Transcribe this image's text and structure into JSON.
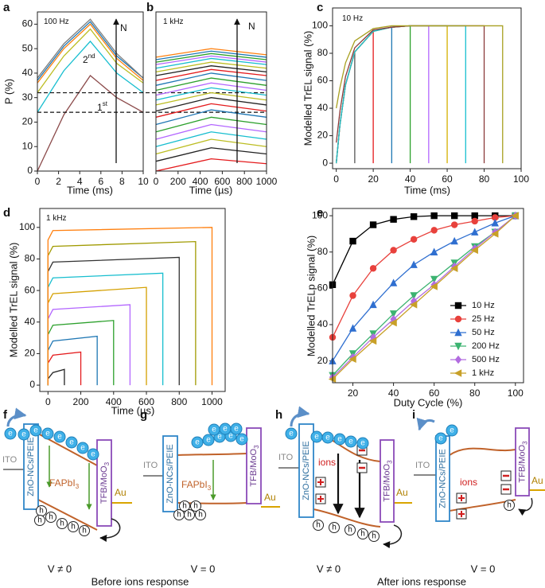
{
  "chart_data": [
    {
      "type": "line",
      "panel": "a",
      "xlabel": "Time (ms)",
      "ylabel": "P (%)",
      "annotations": [
        {
          "text": "100 Hz"
        },
        {
          "text": "N"
        },
        {
          "text": "2",
          "sup": "nd"
        },
        {
          "text": "1",
          "sup": "st"
        }
      ],
      "x": [
        0,
        2.5,
        5,
        7.5,
        10
      ],
      "series": [
        {
          "color": "#8b4a4a",
          "values": [
            0,
            23,
            39,
            30,
            24
          ]
        },
        {
          "color": "#17becf",
          "values": [
            24,
            41,
            53,
            40,
            32
          ]
        },
        {
          "color": "#bcbd22",
          "values": [
            32,
            47,
            58,
            44,
            36
          ]
        },
        {
          "color": "#ff7f0e",
          "values": [
            36,
            50,
            60,
            46,
            37
          ]
        },
        {
          "color": "#1f77b4",
          "values": [
            37,
            51,
            61,
            47,
            38
          ]
        },
        {
          "color": "#7f7f7f",
          "values": [
            38,
            52,
            62,
            48,
            38
          ]
        }
      ],
      "hlines": [
        24,
        32
      ],
      "xlim": [
        0,
        10
      ],
      "ylim": [
        0,
        65
      ],
      "xticks": [
        0,
        2,
        4,
        6,
        8,
        10
      ],
      "yticks": [
        0,
        10,
        20,
        30,
        40,
        50,
        60
      ]
    },
    {
      "type": "line",
      "panel": "b",
      "xlabel": "Time (µs)",
      "annotations": [
        {
          "text": "1 kHz"
        },
        {
          "text": "N"
        }
      ],
      "x": [
        0,
        500,
        1000
      ],
      "series": [
        {
          "color": "#e41a1c",
          "values": [
            0,
            5,
            3
          ]
        },
        {
          "color": "#222222",
          "values": [
            4,
            9.5,
            7
          ]
        },
        {
          "color": "#bcbd22",
          "values": [
            7,
            13,
            10
          ]
        },
        {
          "color": "#17becf",
          "values": [
            10,
            16,
            13
          ]
        },
        {
          "color": "#b366ff",
          "values": [
            13,
            19,
            16
          ]
        },
        {
          "color": "#2ca02c",
          "values": [
            16,
            22,
            19
          ]
        },
        {
          "color": "#1f77b4",
          "values": [
            19,
            25,
            22
          ]
        },
        {
          "color": "#e41a1c",
          "values": [
            22,
            27.5,
            24.5
          ]
        },
        {
          "color": "#222222",
          "values": [
            24.5,
            30,
            27
          ]
        },
        {
          "color": "#bcbd22",
          "values": [
            27,
            32,
            29
          ]
        },
        {
          "color": "#17becf",
          "values": [
            29,
            34,
            31
          ]
        },
        {
          "color": "#b366ff",
          "values": [
            31,
            36,
            33
          ]
        },
        {
          "color": "#2ca02c",
          "values": [
            33,
            38,
            35
          ]
        },
        {
          "color": "#1f77b4",
          "values": [
            35,
            40,
            37
          ]
        },
        {
          "color": "#e41a1c",
          "values": [
            37,
            41.5,
            39
          ]
        },
        {
          "color": "#222222",
          "values": [
            39,
            43,
            40.5
          ]
        },
        {
          "color": "#bcbd22",
          "values": [
            40.5,
            44.5,
            42
          ]
        },
        {
          "color": "#17becf",
          "values": [
            42,
            46,
            43.5
          ]
        },
        {
          "color": "#b366ff",
          "values": [
            43.5,
            47,
            44.5
          ]
        },
        {
          "color": "#2ca02c",
          "values": [
            44.5,
            48,
            45.5
          ]
        },
        {
          "color": "#1f77b4",
          "values": [
            45.5,
            49,
            46.5
          ]
        },
        {
          "color": "#ff7f0e",
          "values": [
            46.5,
            50,
            47.5
          ]
        }
      ],
      "xlim": [
        0,
        1000
      ],
      "ylim": [
        0,
        65
      ],
      "xticks": [
        0,
        200,
        400,
        600,
        800,
        1000
      ]
    },
    {
      "type": "line",
      "panel": "c",
      "xlabel": "Time (ms)",
      "ylabel": "Modelled TrEL signal (%)",
      "annotations": [
        {
          "text": "10 Hz"
        }
      ],
      "series": [
        {
          "color": "#555555",
          "x": [
            0,
            2,
            5,
            10,
            10
          ],
          "values": [
            0,
            28,
            57,
            81,
            0
          ]
        },
        {
          "color": "#e41a1c",
          "x": [
            0,
            2,
            5,
            10,
            20,
            20
          ],
          "values": [
            0,
            28,
            57,
            81,
            96,
            0
          ]
        },
        {
          "color": "#1f77b4",
          "x": [
            0,
            2,
            5,
            10,
            20,
            30,
            30
          ],
          "values": [
            0,
            28,
            57,
            81,
            96,
            99,
            0
          ]
        },
        {
          "color": "#2ca02c",
          "x": [
            0,
            2,
            5,
            10,
            20,
            30,
            40,
            40
          ],
          "values": [
            0,
            28,
            57,
            81,
            96,
            99,
            100,
            0
          ]
        },
        {
          "color": "#b366ff",
          "x": [
            0,
            2,
            5,
            10,
            20,
            30,
            40,
            50,
            50
          ],
          "values": [
            0,
            28,
            57,
            81,
            96,
            99,
            100,
            100,
            0
          ]
        },
        {
          "color": "#d4b000",
          "x": [
            0,
            2,
            5,
            10,
            20,
            30,
            40,
            50,
            60,
            60
          ],
          "values": [
            0,
            28,
            57,
            81,
            96,
            99,
            100,
            100,
            100,
            0
          ]
        },
        {
          "color": "#17becf",
          "x": [
            0,
            2,
            5,
            10,
            20,
            30,
            40,
            50,
            60,
            70,
            70
          ],
          "values": [
            0,
            28,
            57,
            81,
            96,
            99,
            100,
            100,
            100,
            100,
            0
          ]
        },
        {
          "color": "#8b3a3a",
          "x": [
            0,
            2,
            5,
            10,
            20,
            30,
            40,
            50,
            60,
            70,
            80,
            80
          ],
          "values": [
            15,
            38,
            63,
            84,
            97,
            99,
            100,
            100,
            100,
            100,
            100,
            0
          ]
        },
        {
          "color": "#a8a020",
          "x": [
            0,
            2,
            5,
            10,
            20,
            30,
            40,
            50,
            60,
            70,
            80,
            90,
            90
          ],
          "values": [
            40,
            55,
            73,
            89,
            98,
            100,
            100,
            100,
            100,
            100,
            100,
            100,
            0
          ]
        }
      ],
      "xlim": [
        -2,
        100
      ],
      "ylim": [
        -4,
        113
      ],
      "xticks": [
        0,
        20,
        40,
        60,
        80,
        100
      ],
      "yticks": [
        0,
        20,
        40,
        60,
        80,
        100
      ]
    },
    {
      "type": "line",
      "panel": "d",
      "xlabel": "Time (µs)",
      "ylabel": "Modelled TrEL signal (%)",
      "annotations": [
        {
          "text": "1 kHz"
        }
      ],
      "series": [
        {
          "color": "#222222",
          "x": [
            0,
            0,
            30,
            100,
            100
          ],
          "values": [
            0,
            4,
            8,
            10,
            0
          ]
        },
        {
          "color": "#e41a1c",
          "x": [
            0,
            0,
            30,
            200,
            200
          ],
          "values": [
            0,
            14,
            19,
            21,
            0
          ]
        },
        {
          "color": "#1f77b4",
          "x": [
            0,
            0,
            30,
            300,
            300
          ],
          "values": [
            0,
            22,
            28,
            31,
            0
          ]
        },
        {
          "color": "#2ca02c",
          "x": [
            0,
            0,
            30,
            400,
            400
          ],
          "values": [
            0,
            32,
            38,
            41,
            0
          ]
        },
        {
          "color": "#b366ff",
          "x": [
            0,
            0,
            30,
            500,
            500
          ],
          "values": [
            0,
            42,
            48,
            51,
            0
          ]
        },
        {
          "color": "#d4a000",
          "x": [
            0,
            0,
            30,
            600,
            600
          ],
          "values": [
            0,
            52,
            58,
            62,
            0
          ]
        },
        {
          "color": "#17becf",
          "x": [
            0,
            0,
            30,
            700,
            700
          ],
          "values": [
            0,
            62,
            68,
            71,
            0
          ]
        },
        {
          "color": "#333333",
          "x": [
            0,
            0,
            30,
            800,
            800
          ],
          "values": [
            0,
            72,
            78,
            81,
            0
          ]
        },
        {
          "color": "#a09a00",
          "x": [
            0,
            0,
            30,
            900,
            900
          ],
          "values": [
            0,
            82,
            88,
            91,
            0
          ]
        },
        {
          "color": "#ff7f0e",
          "x": [
            0,
            0,
            30,
            1000,
            1000
          ],
          "values": [
            0,
            92,
            98,
            100,
            0
          ]
        }
      ],
      "xlim": [
        -50,
        1080
      ],
      "ylim": [
        -4,
        112
      ],
      "xticks": [
        0,
        200,
        400,
        600,
        800,
        1000
      ],
      "yticks": [
        0,
        20,
        40,
        60,
        80,
        100
      ]
    },
    {
      "type": "line",
      "panel": "e",
      "xlabel": "Duty Cycle (%)",
      "ylabel": "Modelled TrELp signal (%)",
      "legend": "lower right",
      "x": [
        10,
        20,
        30,
        40,
        50,
        60,
        70,
        80,
        90,
        100
      ],
      "series": [
        {
          "name": "10 Hz",
          "color": "#000000",
          "marker": "square",
          "values": [
            62,
            86,
            95,
            98,
            99.5,
            100,
            100,
            100,
            100,
            100
          ]
        },
        {
          "name": "25 Hz",
          "color": "#e8413c",
          "marker": "circle",
          "values": [
            33,
            56,
            71,
            81,
            87,
            92,
            95,
            97,
            99,
            100
          ]
        },
        {
          "name": "50 Hz",
          "color": "#2f6fd0",
          "marker": "triangle-up",
          "values": [
            20,
            38,
            51,
            63,
            73,
            80,
            86,
            91,
            96,
            100
          ]
        },
        {
          "name": "200 Hz",
          "color": "#3cb371",
          "marker": "triangle-down",
          "values": [
            12,
            24,
            35,
            46,
            56,
            65,
            74,
            83,
            91,
            100
          ]
        },
        {
          "name": "500 Hz",
          "color": "#b26ce0",
          "marker": "diamond",
          "values": [
            11,
            22,
            33,
            43,
            53,
            62,
            72,
            82,
            91,
            100
          ]
        },
        {
          "name": "1 kHz",
          "color": "#c8a028",
          "marker": "triangle-left",
          "values": [
            10,
            21,
            31,
            41,
            51,
            61,
            71,
            81,
            90,
            100
          ]
        }
      ],
      "xlim": [
        10,
        104
      ],
      "ylim": [
        8,
        104
      ],
      "xticks": [
        20,
        40,
        60,
        80,
        100
      ],
      "yticks": [
        20,
        40,
        60,
        80,
        100
      ]
    }
  ],
  "diagrams": {
    "panels": [
      {
        "label": "f",
        "ito": "ITO",
        "etl": "ZnO-NCs/PEIE",
        "perovskite": {
          "text": "FAPbI",
          "sub": "3"
        },
        "htl": {
          "text": "TFB/MoO",
          "sub": "3"
        },
        "electrode": "Au",
        "electron": "e",
        "hole": "h",
        "voltage": "V ≠ 0"
      },
      {
        "label": "g",
        "ito": "ITO",
        "etl": "ZnO-NCs/PEIE",
        "perovskite": {
          "text": "FAPbI",
          "sub": "3"
        },
        "htl": {
          "text": "TFB/MoO",
          "sub": "3"
        },
        "electrode": "Au",
        "electron": "e",
        "hole": "h",
        "voltage": "V = 0"
      },
      {
        "label": "h",
        "ito": "ITO",
        "etl": "ZnO-NCs/PEIE",
        "ions": "ions",
        "htl": {
          "text": "TFB/MoO",
          "sub": "3"
        },
        "electrode": "Au",
        "electron": "e",
        "hole": "h",
        "voltage": "V ≠ 0"
      },
      {
        "label": "i",
        "ito": "ITO",
        "etl": "ZnO-NCs/PEIE",
        "ions": "ions",
        "htl": {
          "text": "TFB/MoO",
          "sub": "3"
        },
        "electrode": "Au",
        "electron": "e",
        "hole": "h",
        "voltage": "V = 0"
      }
    ],
    "captions": [
      "Before ions response",
      "After ions response"
    ]
  }
}
